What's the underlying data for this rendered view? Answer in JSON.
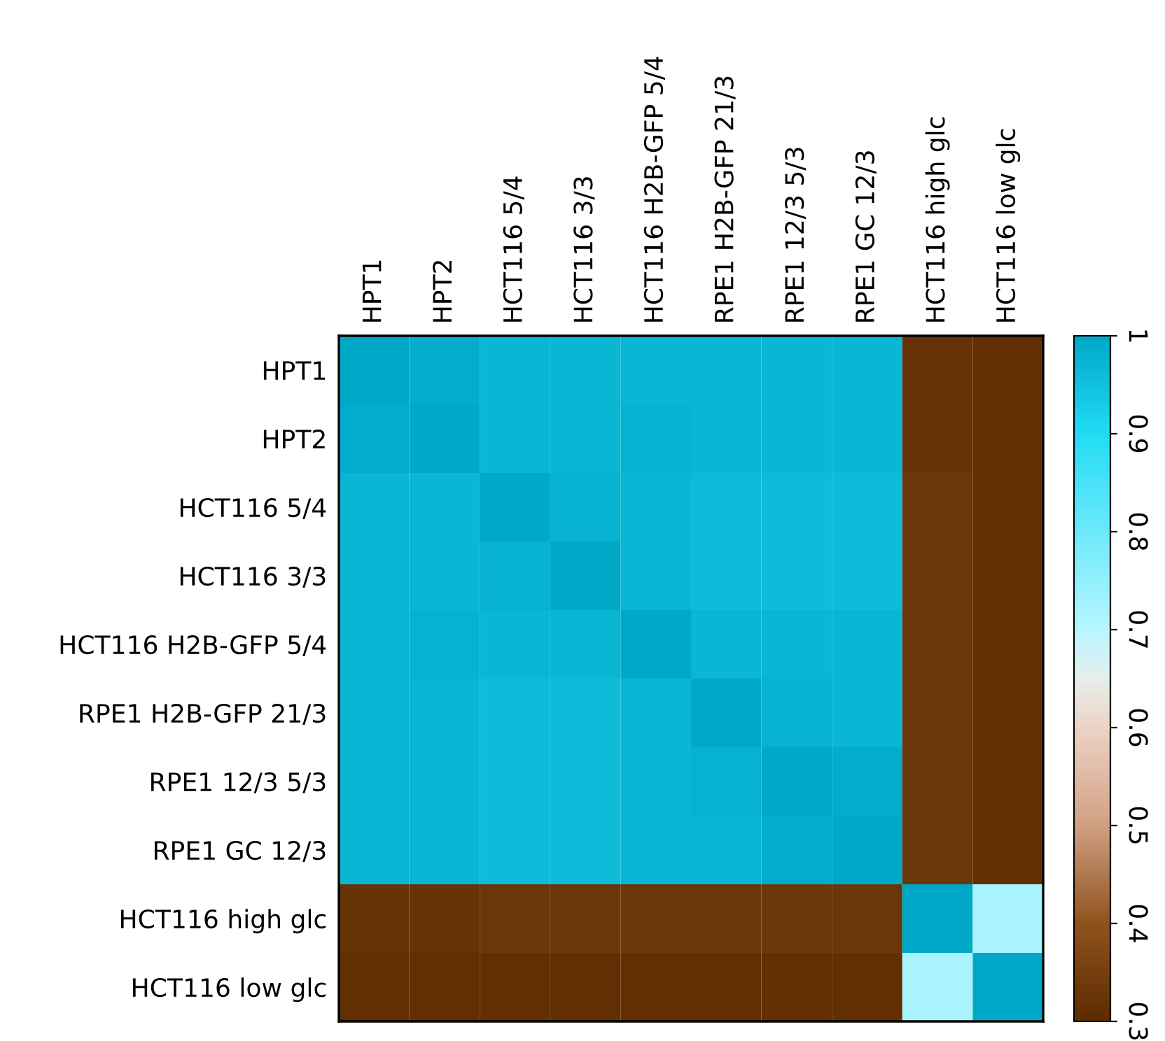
{
  "chart_data": {
    "type": "heatmap",
    "categories": [
      "HPT1",
      "HPT2",
      "HCT116 5/4",
      "HCT116 3/3",
      "HCT116 H2B-GFP 5/4",
      "RPE1 H2B-GFP 21/3",
      "RPE1 12/3 5/3",
      "RPE1 GC 12/3",
      "HCT116 high glc",
      "HCT116 low glc"
    ],
    "y_categories": [
      "HPT1",
      "HPT2",
      "HCT116 5/4",
      "HCT116 3/3",
      "HCT116 H2B-GFP 5/4",
      "RPE1 H2B-GFP 21/3",
      "RPE1 12/3 5/3",
      "RPE1 GC 12/3",
      "HCT116 high glc",
      "HCT116 low glc"
    ],
    "cells": [
      [
        1.0,
        0.99,
        0.97,
        0.97,
        0.97,
        0.97,
        0.97,
        0.97,
        0.32,
        0.31
      ],
      [
        0.99,
        1.0,
        0.97,
        0.97,
        0.98,
        0.97,
        0.97,
        0.97,
        0.32,
        0.31
      ],
      [
        0.97,
        0.97,
        1.0,
        0.98,
        0.97,
        0.96,
        0.96,
        0.96,
        0.33,
        0.31
      ],
      [
        0.97,
        0.97,
        0.98,
        1.0,
        0.97,
        0.96,
        0.96,
        0.96,
        0.33,
        0.31
      ],
      [
        0.97,
        0.98,
        0.97,
        0.97,
        1.0,
        0.97,
        0.97,
        0.97,
        0.33,
        0.31
      ],
      [
        0.97,
        0.97,
        0.96,
        0.96,
        0.97,
        1.0,
        0.98,
        0.97,
        0.33,
        0.31
      ],
      [
        0.97,
        0.97,
        0.96,
        0.96,
        0.97,
        0.98,
        1.0,
        0.99,
        0.33,
        0.31
      ],
      [
        0.97,
        0.97,
        0.96,
        0.96,
        0.97,
        0.97,
        0.99,
        1.0,
        0.33,
        0.31
      ],
      [
        0.32,
        0.32,
        0.33,
        0.33,
        0.33,
        0.33,
        0.33,
        0.33,
        1.0,
        0.72
      ],
      [
        0.31,
        0.31,
        0.31,
        0.31,
        0.31,
        0.31,
        0.31,
        0.31,
        0.72,
        1.0
      ]
    ],
    "clim": [
      0.3,
      1
    ],
    "cticks": [
      {
        "value": 0.3,
        "label": "0.3"
      },
      {
        "value": 0.4,
        "label": "0.4"
      },
      {
        "value": 0.5,
        "label": "0.5"
      },
      {
        "value": 0.6,
        "label": "0.6"
      },
      {
        "value": 0.7,
        "label": "0.7"
      },
      {
        "value": 0.8,
        "label": "0.8"
      },
      {
        "value": 0.9,
        "label": "0.9"
      },
      {
        "value": 1,
        "label": "1"
      }
    ]
  }
}
